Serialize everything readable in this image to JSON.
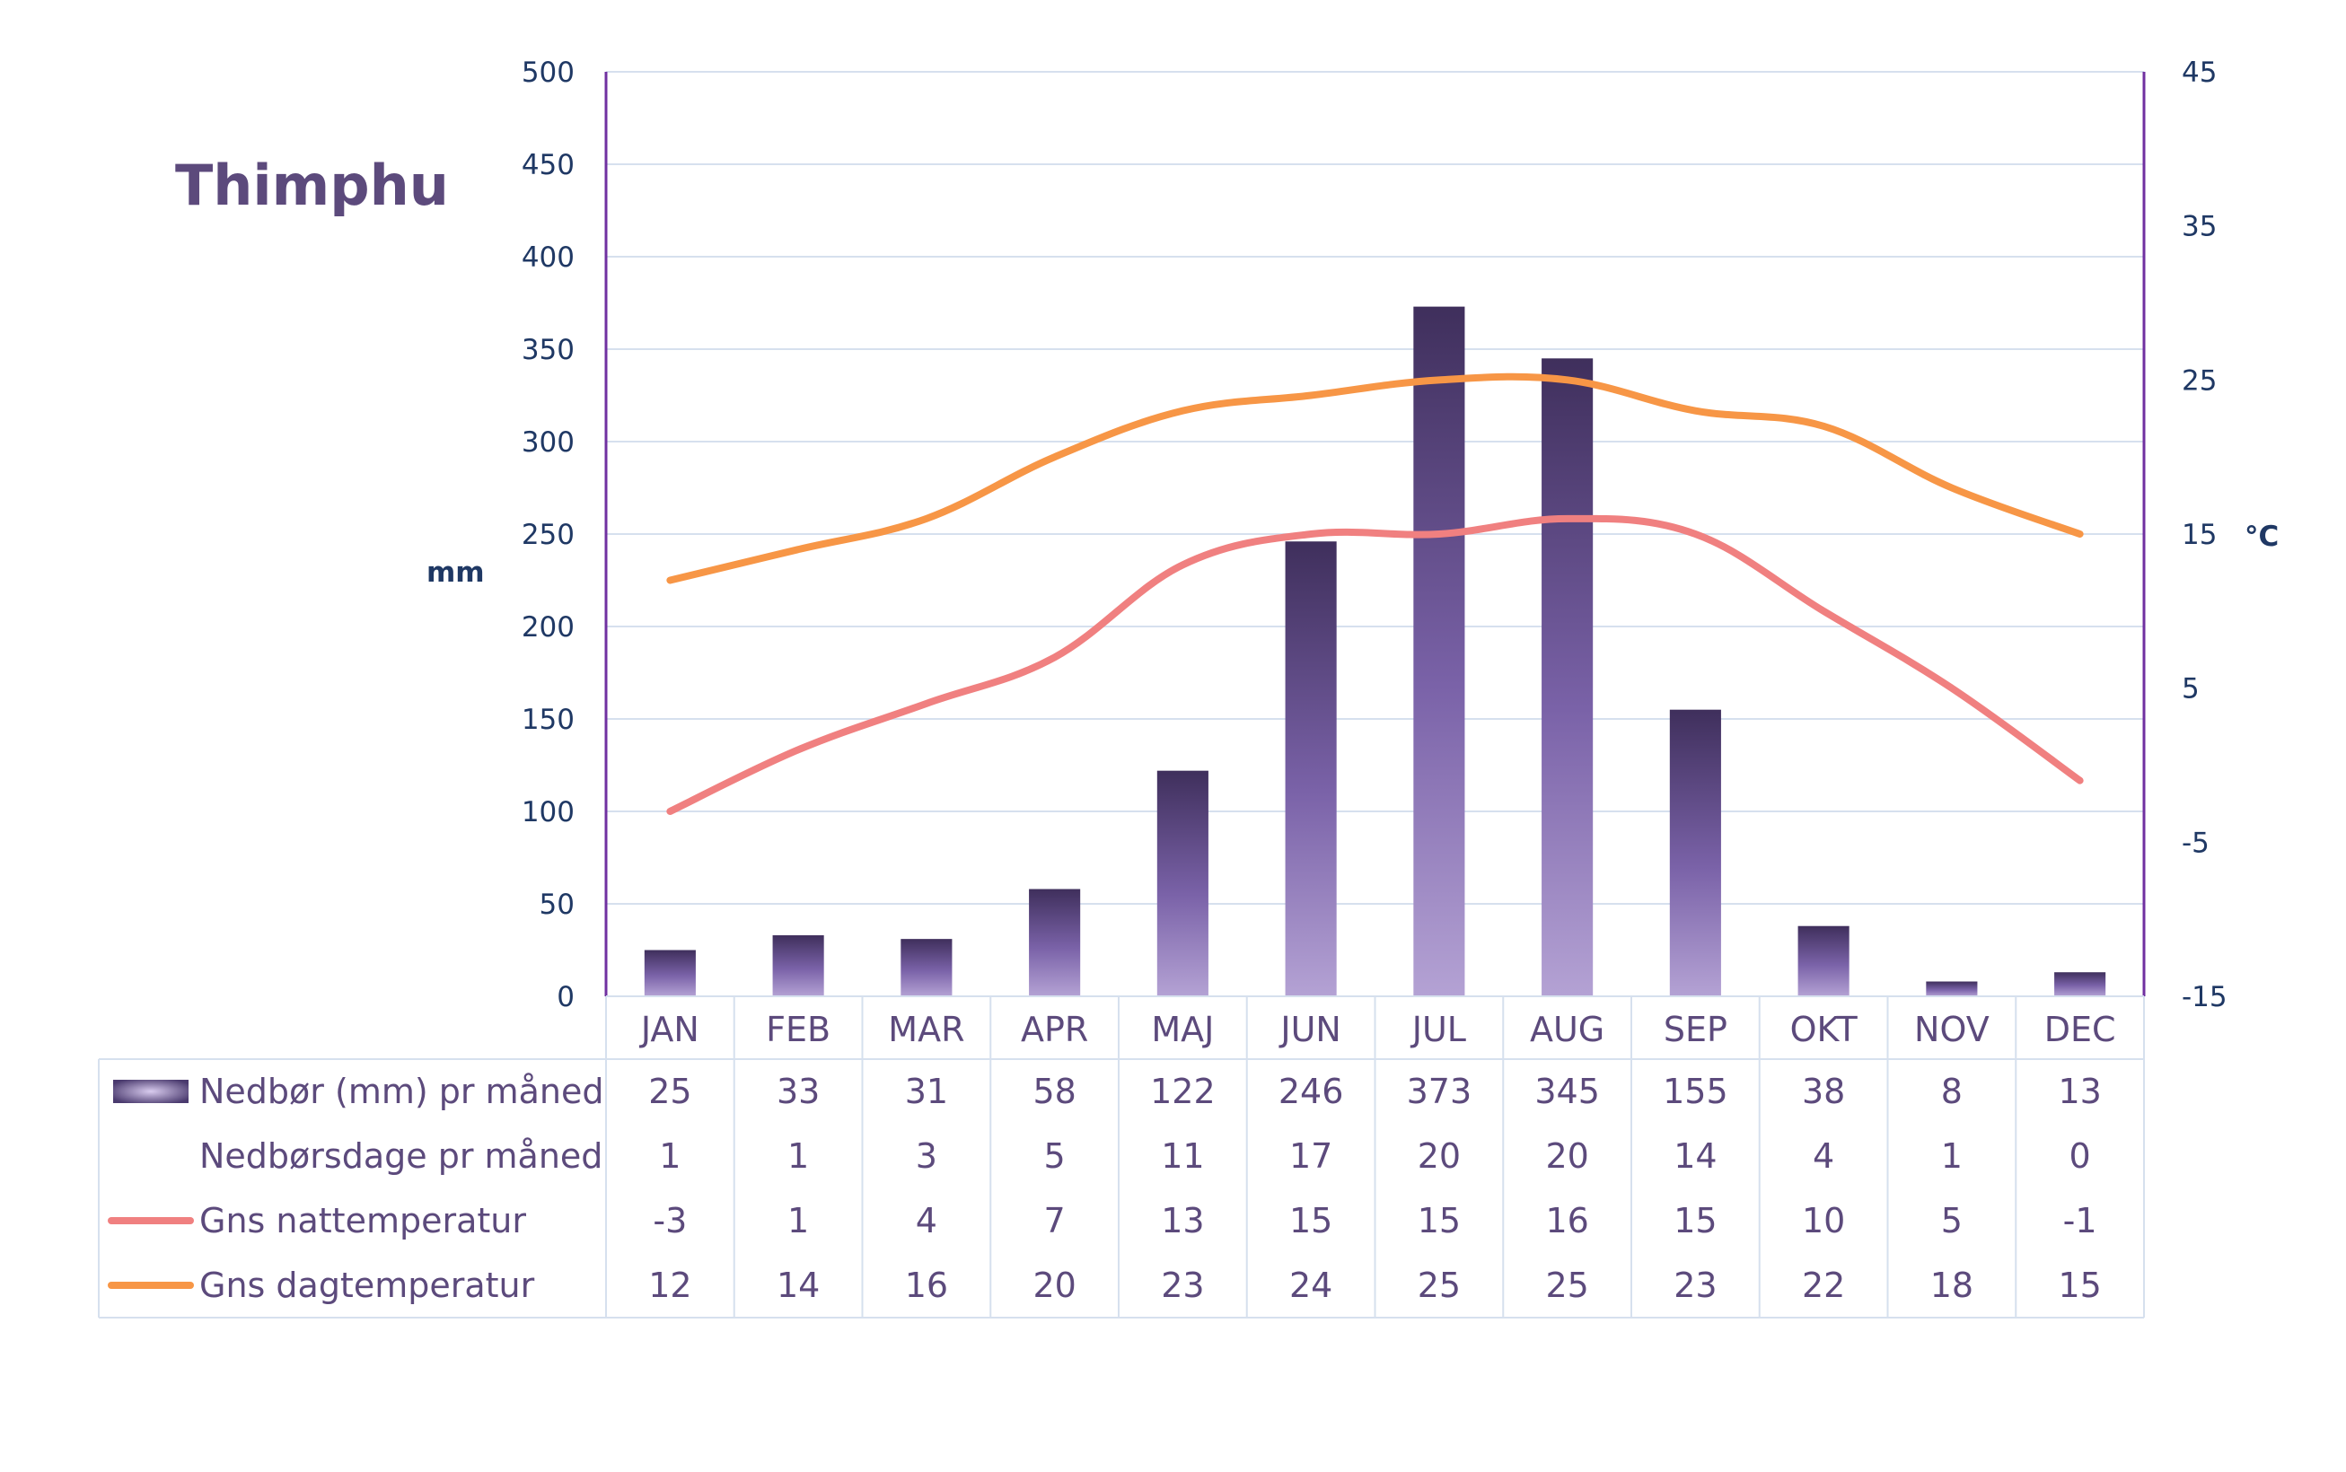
{
  "title": "Thimphu",
  "chart_data": {
    "type": "bar",
    "categories": [
      "JAN",
      "FEB",
      "MAR",
      "APR",
      "MAJ",
      "JUN",
      "JUL",
      "AUG",
      "SEP",
      "OKT",
      "NOV",
      "DEC"
    ],
    "left_axis": {
      "label": "mm",
      "ylim": [
        0,
        500
      ],
      "ticks": [
        0,
        50,
        100,
        150,
        200,
        250,
        300,
        350,
        400,
        450,
        500
      ]
    },
    "right_axis": {
      "label": "°C",
      "ylim": [
        -15,
        45
      ],
      "ticks": [
        -15,
        -5,
        5,
        15,
        25,
        35,
        45
      ]
    },
    "grid": true,
    "series": [
      {
        "name": "Nedbør (mm) pr måned",
        "kind": "bar",
        "axis": "left",
        "values": [
          25,
          33,
          31,
          58,
          122,
          246,
          373,
          345,
          155,
          38,
          8,
          13
        ]
      },
      {
        "name": "Nedbørsdage pr måned",
        "kind": "table-only",
        "values": [
          1,
          1,
          3,
          5,
          11,
          17,
          20,
          20,
          14,
          4,
          1,
          0
        ]
      },
      {
        "name": "Gns nattemperatur",
        "kind": "line",
        "axis": "right",
        "color": "#f08080",
        "values": [
          -3,
          1,
          4,
          7,
          13,
          15,
          15,
          16,
          15,
          10,
          5,
          -1
        ]
      },
      {
        "name": "Gns dagtemperatur",
        "kind": "line",
        "axis": "right",
        "color": "#f79646",
        "values": [
          12,
          14,
          16,
          20,
          23,
          24,
          25,
          25,
          23,
          22,
          18,
          15
        ]
      }
    ]
  },
  "colors": {
    "bar_dark": "#3f2f5c",
    "bar_light": "#b4a2d4",
    "grid": "#d6e0ee",
    "axis": "#7030a0",
    "table_border": "#d6e0ee",
    "text": "#5c4a7c",
    "tick_text": "#1f3864"
  }
}
